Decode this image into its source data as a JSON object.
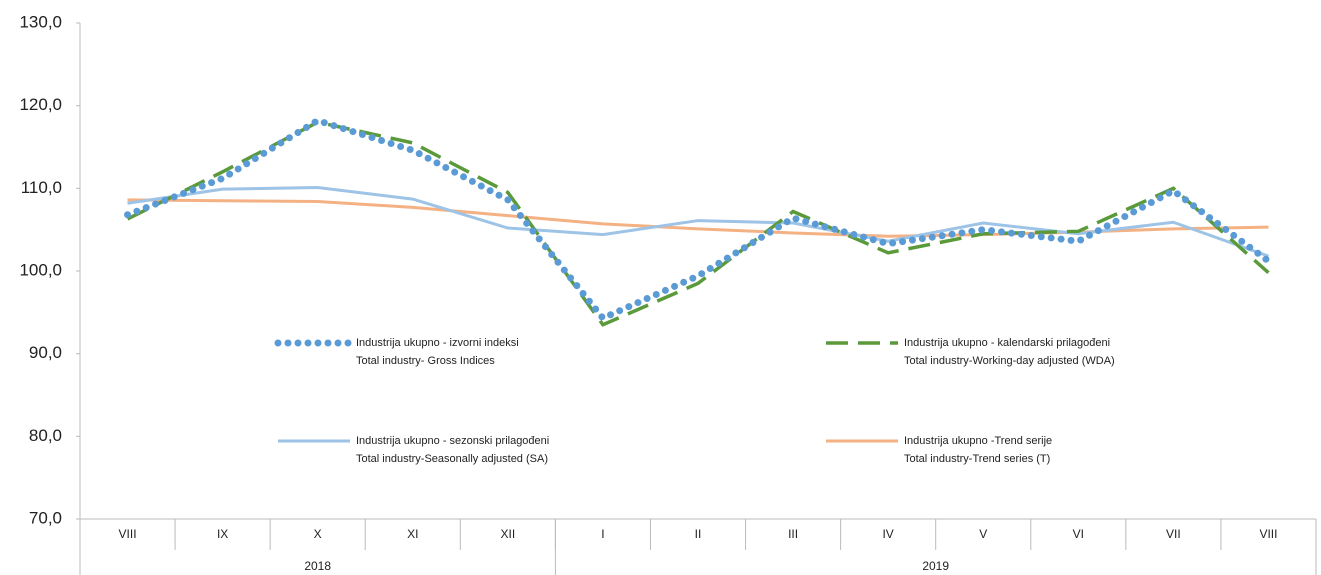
{
  "chart_data": {
    "type": "line",
    "categories": [
      "VIII",
      "IX",
      "X",
      "XI",
      "XII",
      "I",
      "II",
      "III",
      "IV",
      "V",
      "VI",
      "VII",
      "VIII"
    ],
    "groups": [
      {
        "label": "2018",
        "start": 0,
        "end": 4
      },
      {
        "label": "2019",
        "start": 5,
        "end": 12
      }
    ],
    "ylim": [
      70,
      130
    ],
    "yticks": [
      {
        "value": 70,
        "label": "70,0"
      },
      {
        "value": 80,
        "label": "80,0"
      },
      {
        "value": 90,
        "label": "90,0"
      },
      {
        "value": 100,
        "label": "100,0"
      },
      {
        "value": 110,
        "label": "110,0"
      },
      {
        "value": 120,
        "label": "120,0"
      },
      {
        "value": 130,
        "label": "130,0"
      }
    ],
    "grid": false,
    "series": [
      {
        "name": "Industrija ukupno - izvorni indeksi",
        "name_en": "Total industry- Gross Indices",
        "color": "#5b9bd5",
        "style": "dotted",
        "values": [
          106.8,
          111.2,
          118.2,
          114.6,
          108.6,
          94.3,
          99.4,
          106.4,
          103.3,
          105.0,
          103.6,
          109.7,
          101.2
        ]
      },
      {
        "name": "Industrija ukupno - kalendarski prilagođeni",
        "name_en": "Total industry-Working-day adjusted (WDA)",
        "color": "#5a9a3a",
        "style": "dashed",
        "values": [
          106.3,
          112.0,
          118.0,
          115.5,
          109.5,
          93.5,
          98.5,
          107.2,
          102.2,
          104.5,
          104.8,
          110.0,
          99.8
        ]
      },
      {
        "name": "Industrija ukupno - sezonski prilagođeni",
        "name_en": "Total industry-Seasonally adjusted (SA)",
        "color": "#9dc3e6",
        "style": "solid",
        "values": [
          108.2,
          109.9,
          110.1,
          108.7,
          105.2,
          104.4,
          106.1,
          105.8,
          103.6,
          105.8,
          104.5,
          105.9,
          101.8
        ]
      },
      {
        "name": "Industrija ukupno -Trend serije",
        "name_en": "Total industry-Trend series (T)",
        "color": "#f4b183",
        "style": "solid",
        "values": [
          108.6,
          108.5,
          108.4,
          107.7,
          106.7,
          105.7,
          105.1,
          104.6,
          104.2,
          104.4,
          104.7,
          105.1,
          105.3
        ]
      }
    ]
  }
}
